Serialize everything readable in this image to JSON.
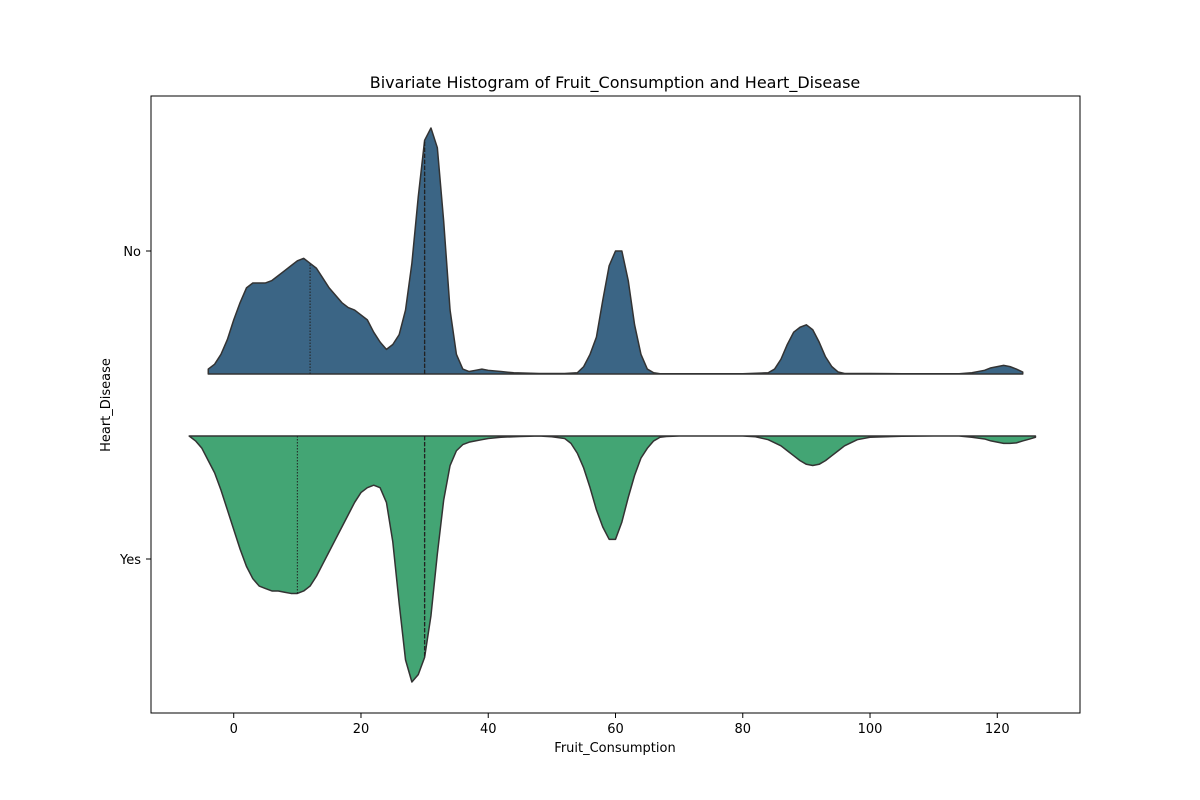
{
  "chart_data": {
    "type": "violin",
    "title": "Bivariate Histogram of Fruit_Consumption and Heart_Disease",
    "xlabel": "Fruit_Consumption",
    "ylabel": "Heart_Disease",
    "xlim": [
      -13,
      133
    ],
    "xticks": [
      0,
      20,
      40,
      60,
      80,
      100,
      120
    ],
    "categories": [
      "No",
      "Yes"
    ],
    "grid": false,
    "split": true,
    "series": [
      {
        "category": "No",
        "side": "upper",
        "color": "#3b6585",
        "x": [
          -4,
          -3,
          -2,
          -1,
          0,
          1,
          2,
          3,
          4,
          5,
          6,
          7,
          8,
          9,
          10,
          11,
          12,
          13,
          14,
          15,
          16,
          17,
          18,
          19,
          20,
          21,
          22,
          23,
          24,
          25,
          26,
          27,
          28,
          29,
          30,
          31,
          32,
          33,
          34,
          35,
          36,
          37,
          38,
          39,
          40,
          42,
          44,
          48,
          52,
          54,
          55,
          56,
          57,
          58,
          59,
          60,
          61,
          62,
          63,
          64,
          65,
          66,
          67,
          68,
          70,
          75,
          80,
          84,
          85,
          86,
          87,
          88,
          89,
          90,
          91,
          92,
          93,
          94,
          95,
          96,
          100,
          105,
          110,
          114,
          116,
          118,
          119,
          120,
          121,
          122,
          123,
          124
        ],
        "density": [
          0.02,
          0.04,
          0.08,
          0.14,
          0.22,
          0.29,
          0.35,
          0.37,
          0.37,
          0.37,
          0.38,
          0.4,
          0.42,
          0.44,
          0.46,
          0.47,
          0.45,
          0.43,
          0.39,
          0.35,
          0.32,
          0.29,
          0.27,
          0.26,
          0.24,
          0.22,
          0.17,
          0.13,
          0.1,
          0.12,
          0.16,
          0.26,
          0.45,
          0.72,
          0.95,
          1.0,
          0.92,
          0.62,
          0.26,
          0.08,
          0.02,
          0.01,
          0.015,
          0.02,
          0.015,
          0.01,
          0.005,
          0.002,
          0.002,
          0.005,
          0.03,
          0.08,
          0.15,
          0.3,
          0.44,
          0.5,
          0.5,
          0.38,
          0.2,
          0.08,
          0.02,
          0.005,
          0.001,
          0.001,
          0.001,
          0.001,
          0.001,
          0.005,
          0.02,
          0.06,
          0.12,
          0.17,
          0.19,
          0.2,
          0.18,
          0.13,
          0.07,
          0.03,
          0.008,
          0.002,
          0.002,
          0.001,
          0.001,
          0.001,
          0.005,
          0.015,
          0.025,
          0.03,
          0.035,
          0.03,
          0.02,
          0.008
        ],
        "median": 30,
        "quartiles": [
          12,
          30
        ]
      },
      {
        "category": "Yes",
        "side": "lower",
        "color": "#43a574",
        "x": [
          -7,
          -6,
          -5,
          -4,
          -3,
          -2,
          -1,
          0,
          1,
          2,
          3,
          4,
          5,
          6,
          7,
          8,
          9,
          10,
          11,
          12,
          13,
          14,
          15,
          16,
          17,
          18,
          19,
          20,
          21,
          22,
          23,
          24,
          25,
          26,
          27,
          28,
          29,
          30,
          31,
          32,
          33,
          34,
          35,
          36,
          37,
          38,
          39,
          40,
          42,
          45,
          48,
          50,
          52,
          53,
          54,
          55,
          56,
          57,
          58,
          59,
          60,
          61,
          62,
          63,
          64,
          65,
          66,
          67,
          68,
          70,
          75,
          80,
          82,
          84,
          86,
          87,
          88,
          89,
          90,
          91,
          92,
          93,
          94,
          95,
          96,
          98,
          100,
          105,
          110,
          114,
          116,
          118,
          119,
          120,
          121,
          122,
          123,
          124,
          125,
          126
        ],
        "density": [
          0.0,
          0.02,
          0.05,
          0.1,
          0.15,
          0.22,
          0.3,
          0.38,
          0.46,
          0.53,
          0.58,
          0.61,
          0.62,
          0.63,
          0.63,
          0.635,
          0.64,
          0.64,
          0.63,
          0.61,
          0.57,
          0.52,
          0.47,
          0.42,
          0.37,
          0.32,
          0.27,
          0.23,
          0.21,
          0.2,
          0.21,
          0.27,
          0.43,
          0.68,
          0.91,
          1.0,
          0.97,
          0.9,
          0.73,
          0.48,
          0.26,
          0.12,
          0.06,
          0.035,
          0.025,
          0.02,
          0.015,
          0.01,
          0.005,
          0.002,
          0.0,
          0.003,
          0.01,
          0.03,
          0.07,
          0.13,
          0.21,
          0.3,
          0.37,
          0.42,
          0.42,
          0.35,
          0.25,
          0.16,
          0.09,
          0.05,
          0.02,
          0.005,
          0.002,
          0.0,
          0.0,
          0.0,
          0.003,
          0.015,
          0.04,
          0.06,
          0.08,
          0.1,
          0.115,
          0.12,
          0.115,
          0.1,
          0.08,
          0.06,
          0.04,
          0.015,
          0.005,
          0.001,
          0.0,
          0.0,
          0.005,
          0.012,
          0.02,
          0.025,
          0.03,
          0.03,
          0.028,
          0.02,
          0.013,
          0.005,
          0.0
        ],
        "median": 30,
        "quartiles": [
          10,
          30
        ]
      }
    ]
  }
}
